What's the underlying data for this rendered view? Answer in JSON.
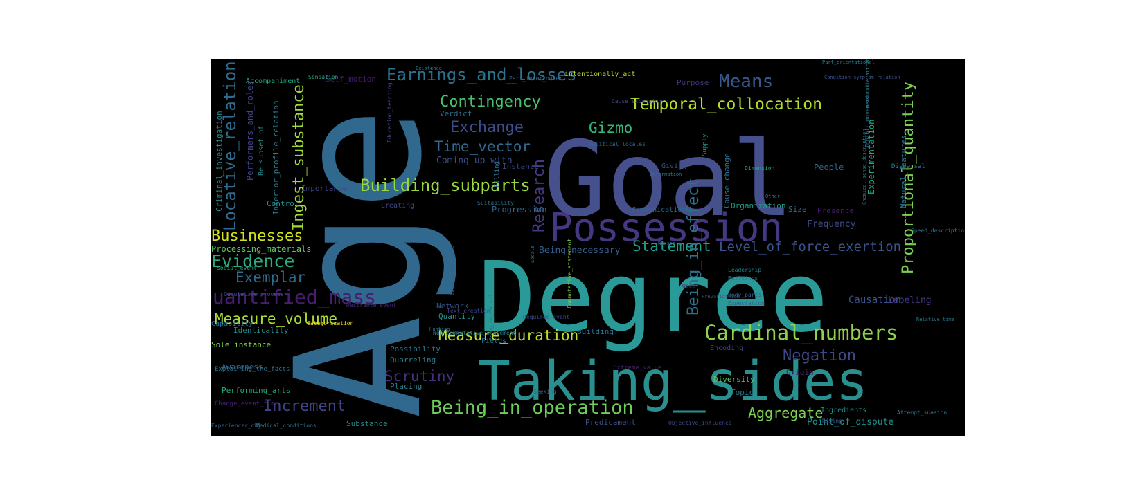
{
  "wordcloud": {
    "words": [
      {
        "text": "Age",
        "color": "#31688e"
      },
      {
        "text": "Goal",
        "color": "#46508c"
      },
      {
        "text": "Degree",
        "color": "#2a9a98"
      },
      {
        "text": "Taking_sides",
        "color": "#2a8f8f"
      },
      {
        "text": "Possession",
        "color": "#453781"
      },
      {
        "text": "Cardinal_numbers",
        "color": "#8fd14f"
      },
      {
        "text": "Being_in_operation",
        "color": "#6ccd5a"
      },
      {
        "text": "Quantified_mass",
        "color": "#481f70"
      },
      {
        "text": "Earnings_and_losses",
        "color": "#2c738e"
      },
      {
        "text": "Means",
        "color": "#38588c"
      },
      {
        "text": "Temporal_collocation",
        "color": "#b5de2b"
      },
      {
        "text": "Proportional_quantity",
        "color": "#7ad151"
      },
      {
        "text": "Locative_relation",
        "color": "#2f6b8e"
      },
      {
        "text": "Ingest_substance",
        "color": "#a2da37"
      },
      {
        "text": "Building_subparts",
        "color": "#9bd93c"
      },
      {
        "text": "Contingency",
        "color": "#4ac16d"
      },
      {
        "text": "Exchange",
        "color": "#3e4c8a"
      },
      {
        "text": "Time_vector",
        "color": "#31688e"
      },
      {
        "text": "Gizmo",
        "color": "#35b779"
      },
      {
        "text": "Evidence",
        "color": "#27ad81"
      },
      {
        "text": "Exemplar",
        "color": "#2e6e8e"
      },
      {
        "text": "Businesses",
        "color": "#d2e21b"
      },
      {
        "text": "Measure_volume",
        "color": "#aadc32"
      },
      {
        "text": "Measure_duration",
        "color": "#bddf26"
      },
      {
        "text": "Statement",
        "color": "#1f9e89"
      },
      {
        "text": "Level_of_force_exertion",
        "color": "#3b528b"
      },
      {
        "text": "Research",
        "color": "#443983"
      },
      {
        "text": "Being_in_effect",
        "color": "#2d708e"
      },
      {
        "text": "Negation",
        "color": "#3e4989"
      },
      {
        "text": "Scrutiny",
        "color": "#472f7d"
      },
      {
        "text": "Increment",
        "color": "#414487"
      },
      {
        "text": "Aggregate",
        "color": "#7ad151"
      },
      {
        "text": "Coming_up_with",
        "color": "#3b528b"
      },
      {
        "text": "Performers_and_roles",
        "color": "#414487"
      },
      {
        "text": "Criminal_investigation",
        "color": "#25858e"
      },
      {
        "text": "Interior_profile_relation",
        "color": "#2a788e"
      },
      {
        "text": "Processing_materials",
        "color": "#5ec962"
      },
      {
        "text": "Causation",
        "color": "#3b528b"
      },
      {
        "text": "Labeling",
        "color": "#443983"
      },
      {
        "text": "Point_of_dispute",
        "color": "#21918c"
      },
      {
        "text": "Self_motion",
        "color": "#48186a"
      },
      {
        "text": "Accompaniment",
        "color": "#22a884"
      },
      {
        "text": "intentionally_act",
        "color": "#bddf26"
      },
      {
        "text": "Purpose",
        "color": "#46327e"
      },
      {
        "text": "Verdict",
        "color": "#2c728e"
      },
      {
        "text": "Control",
        "color": "#21918c"
      },
      {
        "text": "Importance",
        "color": "#414487"
      },
      {
        "text": "Creating",
        "color": "#3f4788"
      },
      {
        "text": "Progression",
        "color": "#31688e"
      },
      {
        "text": "Giving",
        "color": "#3b528b"
      },
      {
        "text": "Communication",
        "color": "#31688e"
      },
      {
        "text": "Organization",
        "color": "#1f9e89"
      },
      {
        "text": "Size",
        "color": "#2a788e"
      },
      {
        "text": "People",
        "color": "#31688e"
      },
      {
        "text": "Frequency",
        "color": "#3e4a89"
      },
      {
        "text": "Presence",
        "color": "#481a6c"
      },
      {
        "text": "Being_necessary",
        "color": "#35608d"
      },
      {
        "text": "Network",
        "color": "#3b528b"
      },
      {
        "text": "Quantity",
        "color": "#21918c"
      },
      {
        "text": "Possibility",
        "color": "#2a788e"
      },
      {
        "text": "Quarreling",
        "color": "#287c8e"
      },
      {
        "text": "Placing",
        "color": "#25858e"
      },
      {
        "text": "Identicality",
        "color": "#228c8d"
      },
      {
        "text": "Sole_instance",
        "color": "#84d44b"
      },
      {
        "text": "Awareness",
        "color": "#33638d"
      },
      {
        "text": "Performing_arts",
        "color": "#22a884"
      },
      {
        "text": "Substance",
        "color": "#238a8d"
      },
      {
        "text": "Capability",
        "color": "#2c728e"
      },
      {
        "text": "Topic",
        "color": "#2a788e"
      },
      {
        "text": "Diversity",
        "color": "#5ec962"
      },
      {
        "text": "Ingredients",
        "color": "#21918c"
      },
      {
        "text": "Origin",
        "color": "#482677"
      },
      {
        "text": "Predicament",
        "color": "#3b528b"
      },
      {
        "text": "Building",
        "color": "#2c728e"
      },
      {
        "text": "Fields",
        "color": "#2a788e"
      },
      {
        "text": "Instance",
        "color": "#3e4989"
      },
      {
        "text": "Filling",
        "color": "#2c728e"
      },
      {
        "text": "Supply",
        "color": "#21918c"
      },
      {
        "text": "Experimentation",
        "color": "#22a884"
      },
      {
        "text": "Natural_features",
        "color": "#2a788e"
      },
      {
        "text": "Cause_change",
        "color": "#2c728e"
      },
      {
        "text": "Dispersal",
        "color": "#26828e"
      },
      {
        "text": "Encoding",
        "color": "#3e4989"
      },
      {
        "text": "Categorization",
        "color": "#fde725"
      },
      {
        "text": "Extreme_value",
        "color": "#481f70"
      },
      {
        "text": "Change_event_time",
        "color": "#482173"
      },
      {
        "text": "Explaining_the_facts",
        "color": "#2a788e"
      },
      {
        "text": "Be_subset_of",
        "color": "#228c8d"
      },
      {
        "text": "Sensation",
        "color": "#22a884"
      },
      {
        "text": "Cause_expansion",
        "color": "#3e4989"
      },
      {
        "text": "Political_locales",
        "color": "#31688e"
      },
      {
        "text": "Leadership",
        "color": "#26828e"
      },
      {
        "text": "Buildings",
        "color": "#2a788e"
      },
      {
        "text": "Body_parts",
        "color": "#33638d"
      },
      {
        "text": "Expectation",
        "color": "#35608d"
      },
      {
        "text": "Text_creation",
        "color": "#3f4788"
      },
      {
        "text": "Desirable_event",
        "color": "#482878"
      },
      {
        "text": "Suitability",
        "color": "#2c728e"
      },
      {
        "text": "Cumulative_process",
        "color": "#3b528b"
      },
      {
        "text": "Non-commutative_statement",
        "color": "#2a788e"
      },
      {
        "text": "Commutative_statement",
        "color": "#84d44b"
      },
      {
        "text": "Seeking",
        "color": "#31688e"
      },
      {
        "text": "Attempt_suasion",
        "color": "#2a788e"
      },
      {
        "text": "Objective_influence",
        "color": "#3f4788"
      },
      {
        "text": "Medical_conditions",
        "color": "#2a788e"
      },
      {
        "text": "Experiencer_obj",
        "color": "#33638d"
      },
      {
        "text": "Rising",
        "color": "#3b528b"
      },
      {
        "text": "Social_event",
        "color": "#22a884"
      },
      {
        "text": "Used",
        "color": "#482878"
      },
      {
        "text": "Speed_description",
        "color": "#2c728e"
      },
      {
        "text": "Chemical-sense_description",
        "color": "#2a788e"
      },
      {
        "text": "Part_orientational",
        "color": "#26828e"
      },
      {
        "text": "Condition_symptom_relation",
        "color": "#3b528b"
      },
      {
        "text": "Inhibit_movement",
        "color": "#2c728e"
      },
      {
        "text": "Measurable_attributes",
        "color": "#26828e"
      },
      {
        "text": "Education_teaching",
        "color": "#3f4788"
      },
      {
        "text": "Part_inner_outer",
        "color": "#35608d"
      },
      {
        "text": "Reason",
        "color": "#31688e"
      },
      {
        "text": "Locale",
        "color": "#2a788e"
      },
      {
        "text": "Hunting",
        "color": "#2c728e"
      },
      {
        "text": "Cause_to_perceive",
        "color": "#33638d"
      },
      {
        "text": "Required_event",
        "color": "#3e4989"
      },
      {
        "text": "Being_in_control",
        "color": "#31688e"
      },
      {
        "text": "Relative_time",
        "color": "#2a788e"
      },
      {
        "text": "Dimension",
        "color": "#22a884"
      },
      {
        "text": "Information",
        "color": "#2a788e"
      },
      {
        "text": "Other",
        "color": "#31688e"
      },
      {
        "text": "Existence",
        "color": "#2a788e"
      },
      {
        "text": "Prevarication",
        "color": "#3b528b"
      },
      {
        "text": "Omen",
        "color": "#2c728e"
      }
    ]
  }
}
